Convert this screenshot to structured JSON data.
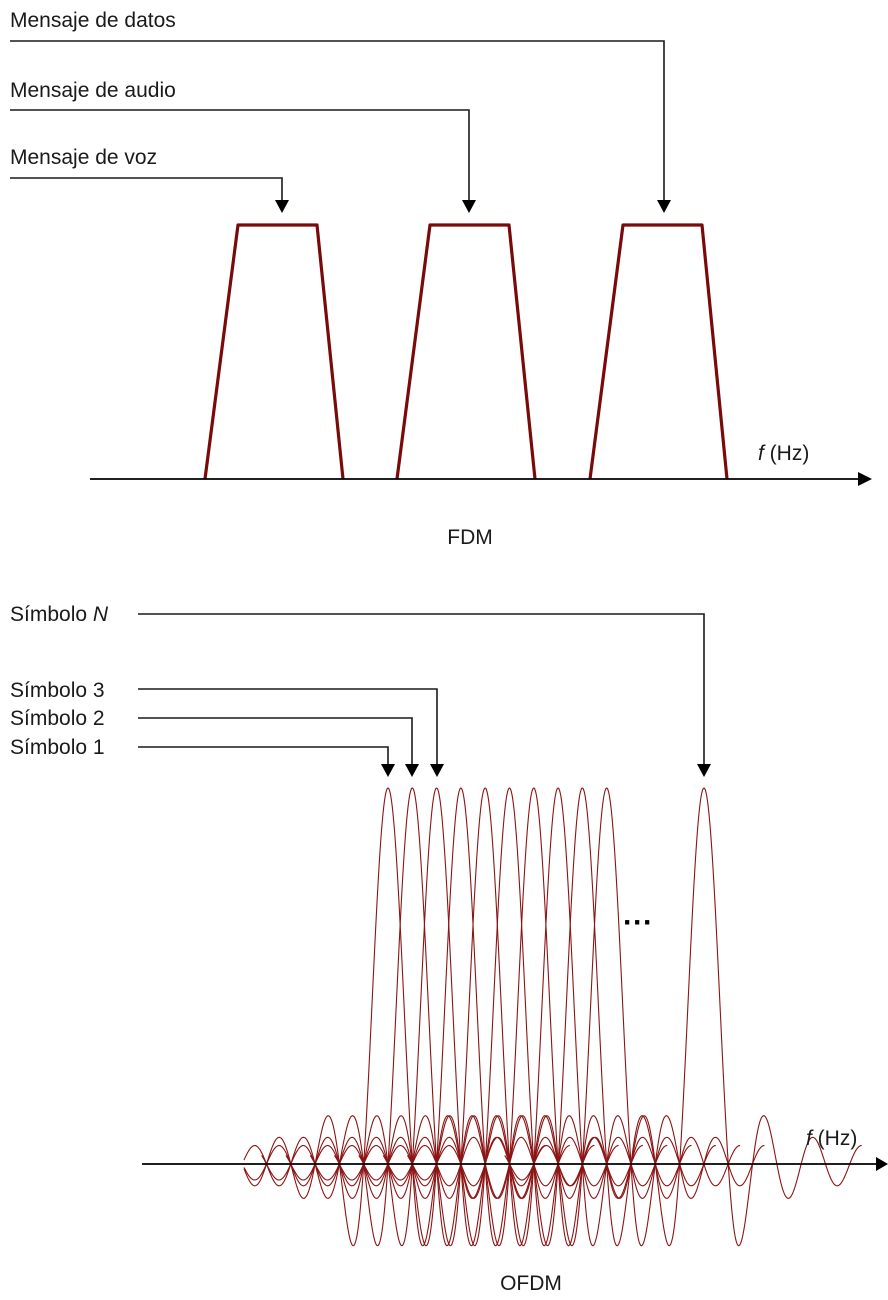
{
  "fdm": {
    "labels": [
      "Mensaje de datos",
      "Mensaje de audio",
      "Mensaje de voz"
    ],
    "axis_label_var": "f",
    "axis_label_unit": " (Hz)",
    "caption": "FDM"
  },
  "ofdm": {
    "labels": {
      "n_prefix": "Símbolo ",
      "n_var": "N",
      "s3": "Símbolo 3",
      "s2": "Símbolo 2",
      "s1": "Símbolo 1"
    },
    "ellipsis": "···",
    "axis_label_var": "f",
    "axis_label_unit": " (Hz)",
    "caption": "OFDM",
    "subcarriers_shown": 10
  },
  "colors": {
    "spectrum": "#8b1414",
    "trapezoid": "#7a0a0a",
    "text": "#1a1a1a"
  }
}
